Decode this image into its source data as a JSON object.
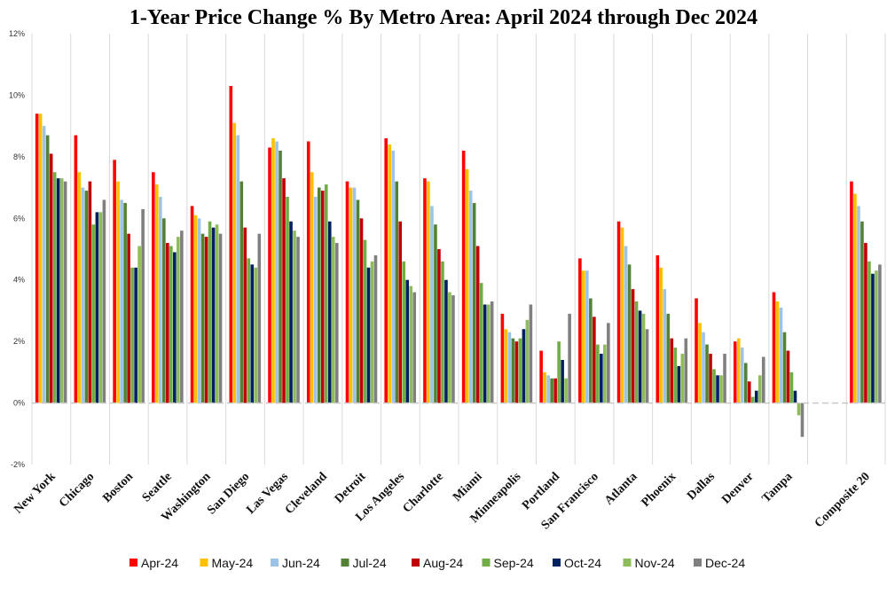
{
  "chart_data": {
    "type": "bar",
    "title": "1-Year Price Change % By Metro Area: April 2024 through Dec 2024",
    "xlabel": "",
    "ylabel": "",
    "ylim": [
      -2,
      12
    ],
    "yticks": [
      -2,
      0,
      2,
      4,
      6,
      8,
      10,
      12
    ],
    "ytick_labels": [
      "-2%",
      "0%",
      "2%",
      "4%",
      "6%",
      "8%",
      "10%",
      "12%"
    ],
    "grid": "vertical category separators",
    "legend_position": "bottom",
    "categories": [
      "New York",
      "Chicago",
      "Boston",
      "Seattle",
      "Washington",
      "San Diego",
      "Las Vegas",
      "Cleveland",
      "Detroit",
      "Los Angeles",
      "Charlotte",
      "Miami",
      "Minneapolis",
      "Portland",
      "San Francisco",
      "Atlanta",
      "Phoenix",
      "Dallas",
      "Denver",
      "Tampa",
      "",
      "Composite 20"
    ],
    "series": [
      {
        "name": "Apr-24",
        "color": "#ff0000",
        "values": [
          9.4,
          8.7,
          7.9,
          7.5,
          6.4,
          10.3,
          8.3,
          8.5,
          7.2,
          8.6,
          7.3,
          8.2,
          2.9,
          1.7,
          4.7,
          5.9,
          4.8,
          3.4,
          2.0,
          3.6,
          null,
          7.2
        ]
      },
      {
        "name": "May-24",
        "color": "#ffc000",
        "values": [
          9.4,
          7.5,
          7.2,
          7.1,
          6.1,
          9.1,
          8.6,
          7.5,
          7.0,
          8.4,
          7.2,
          7.6,
          2.4,
          1.0,
          4.3,
          5.7,
          4.4,
          2.6,
          2.1,
          3.3,
          null,
          6.8
        ]
      },
      {
        "name": "Jun-24",
        "color": "#9dc3e6",
        "values": [
          9.0,
          7.0,
          6.6,
          6.7,
          6.0,
          8.7,
          8.5,
          6.7,
          7.0,
          8.2,
          6.4,
          6.9,
          2.3,
          0.9,
          4.3,
          5.1,
          3.7,
          2.3,
          1.8,
          3.1,
          null,
          6.4
        ]
      },
      {
        "name": "Jul-24",
        "color": "#548235",
        "values": [
          8.7,
          6.9,
          6.5,
          6.0,
          5.5,
          7.2,
          8.2,
          7.0,
          6.6,
          7.2,
          5.8,
          6.5,
          2.1,
          0.8,
          3.4,
          4.5,
          2.9,
          1.9,
          1.3,
          2.3,
          null,
          5.9
        ]
      },
      {
        "name": "Aug-24",
        "color": "#c00000",
        "values": [
          8.1,
          7.2,
          5.5,
          5.2,
          5.4,
          5.7,
          7.3,
          6.9,
          6.0,
          5.9,
          5.0,
          5.1,
          2.0,
          0.8,
          2.8,
          3.7,
          2.1,
          1.6,
          0.7,
          1.7,
          null,
          5.2
        ]
      },
      {
        "name": "Sep-24",
        "color": "#70ad47",
        "values": [
          7.5,
          5.8,
          4.4,
          5.1,
          5.9,
          4.7,
          6.7,
          7.1,
          5.3,
          4.6,
          4.6,
          3.9,
          2.1,
          2.0,
          1.9,
          3.3,
          1.8,
          1.1,
          0.2,
          1.0,
          null,
          4.6
        ]
      },
      {
        "name": "Oct-24",
        "color": "#002060",
        "values": [
          7.3,
          6.2,
          4.4,
          4.9,
          5.7,
          4.5,
          5.9,
          5.9,
          4.4,
          4.0,
          4.0,
          3.2,
          2.4,
          1.4,
          1.6,
          3.0,
          1.2,
          0.9,
          0.4,
          0.4,
          null,
          4.2
        ]
      },
      {
        "name": "Nov-24",
        "color": "#8fbc5a",
        "values": [
          7.3,
          6.2,
          5.1,
          5.4,
          5.8,
          4.4,
          5.6,
          5.4,
          4.6,
          3.8,
          3.6,
          3.2,
          2.7,
          0.8,
          1.9,
          2.9,
          1.6,
          0.9,
          0.9,
          -0.4,
          null,
          4.3
        ]
      },
      {
        "name": "Dec-24",
        "color": "#808080",
        "values": [
          7.2,
          6.6,
          6.3,
          5.6,
          5.5,
          5.5,
          5.4,
          5.2,
          4.8,
          3.6,
          3.5,
          3.3,
          3.2,
          2.9,
          2.6,
          2.4,
          2.1,
          1.6,
          1.5,
          -1.1,
          null,
          4.5
        ]
      }
    ]
  }
}
